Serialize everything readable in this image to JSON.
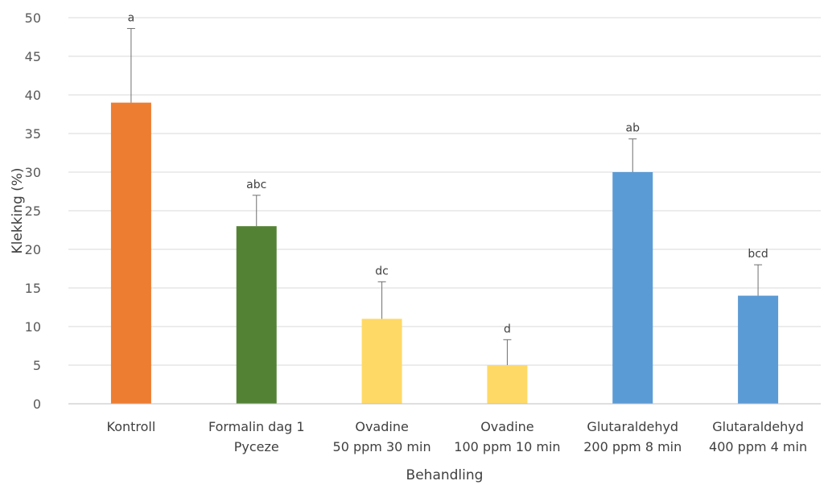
{
  "chart_data": {
    "type": "bar",
    "title": "",
    "xlabel": "Behandling",
    "ylabel": "Klekking (%)",
    "ylim": [
      0,
      50
    ],
    "yticks": [
      0,
      5,
      10,
      15,
      20,
      25,
      30,
      35,
      40,
      45,
      50
    ],
    "grid": true,
    "legend": "none",
    "categories": [
      [
        "Kontroll"
      ],
      [
        "Formalin dag 1",
        "Pyceze"
      ],
      [
        "Ovadine",
        "50 ppm 30 min"
      ],
      [
        "Ovadine",
        "100 ppm 10 min"
      ],
      [
        "Glutaraldehyd",
        "200 ppm 8 min"
      ],
      [
        "Glutaraldehyd",
        "400 ppm 4 min"
      ]
    ],
    "values": [
      39,
      23,
      11,
      5,
      30,
      14
    ],
    "error_upper": [
      48.6,
      27,
      15.8,
      8.3,
      34.3,
      18
    ],
    "significance": [
      "a",
      "abc",
      "dc",
      "d",
      "ab",
      "bcd"
    ],
    "colors": [
      "#ed7d31",
      "#548235",
      "#ffd966",
      "#ffd966",
      "#5b9bd5",
      "#5b9bd5"
    ]
  }
}
